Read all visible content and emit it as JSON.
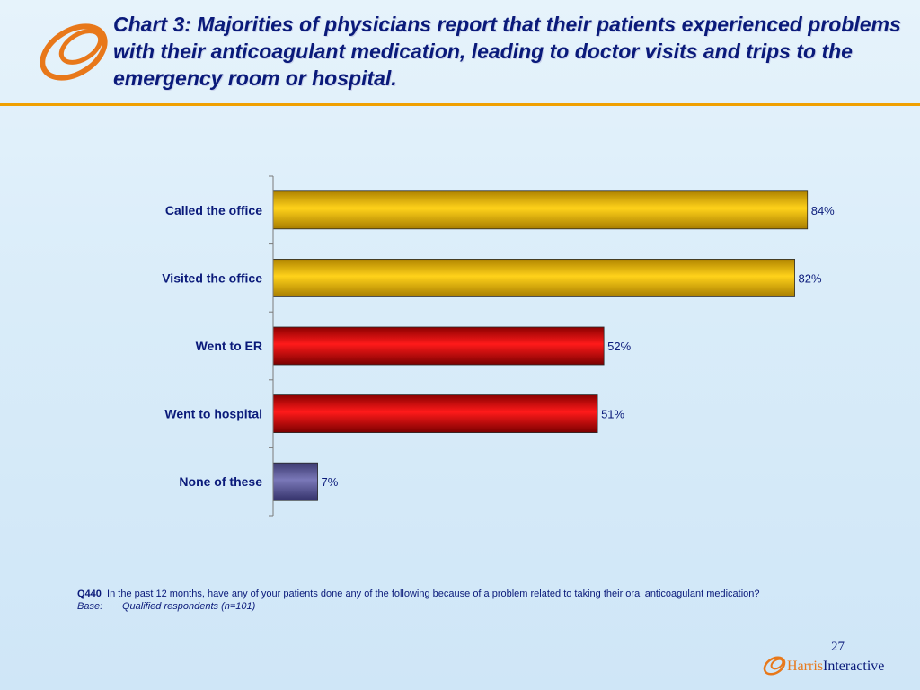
{
  "title": "Chart 3:  Majorities of physicians report that their patients experienced problems with their anticoagulant medication, leading to doctor visits and trips to the emergency room or hospital.",
  "colors": {
    "accent": "#f0a000",
    "text": "#0a1a7a",
    "bar_gold": "#e8b400",
    "bar_red": "#e00000",
    "bar_purple": "#5c5a94"
  },
  "chart_data": {
    "type": "bar",
    "orientation": "horizontal",
    "categories": [
      "Called the office",
      "Visited the office",
      "Went to ER",
      "Went to hospital",
      "None of these"
    ],
    "values": [
      84,
      82,
      52,
      51,
      7
    ],
    "value_labels": [
      "84%",
      "82%",
      "52%",
      "51%",
      "7%"
    ],
    "bar_colors": [
      "#e8b400",
      "#e8b400",
      "#e00000",
      "#e00000",
      "#5c5a94"
    ],
    "xlim": [
      0,
      100
    ],
    "grid": false,
    "legend": "none"
  },
  "footnote": {
    "question_code": "Q440",
    "question_text": "In the past 12 months, have any of your patients done any of the following because of a problem related to taking their oral anticoagulant medication?",
    "base_label": "Base:",
    "base_text": "Qualified respondents (n=101)"
  },
  "page_number": "27",
  "brand": {
    "name_part1": "Harris",
    "name_part2": "Interactive"
  }
}
